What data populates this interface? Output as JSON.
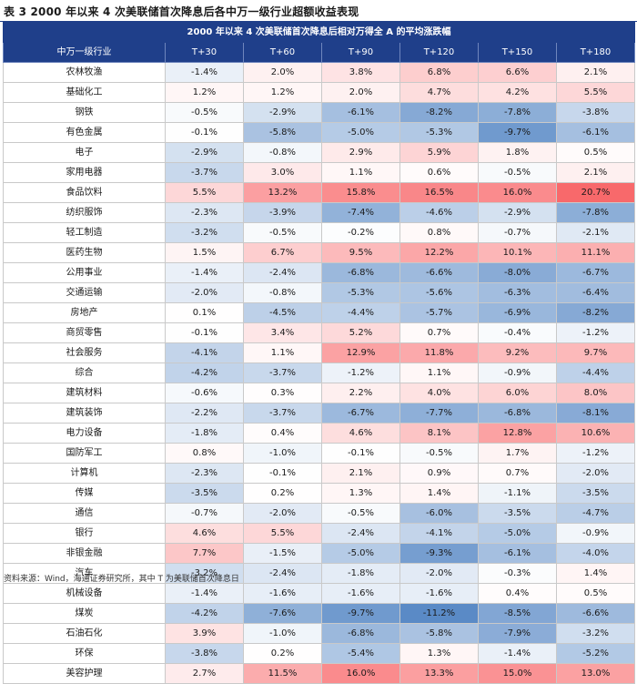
{
  "caption": "表 3  2000 年以来 4 次美联储首次降息后各中万一级行业超额收益表现",
  "table_title": "2000 年以来 4 次美联储首次降息后相对万得全 A 的平均涨跌幅",
  "columns": [
    "中万一级行业",
    "T+30",
    "T+60",
    "T+90",
    "T+120",
    "T+150",
    "T+180"
  ],
  "rows": [
    {
      "name": "农林牧渔",
      "values": [
        "-1.4%",
        "2.0%",
        "3.8%",
        "6.8%",
        "6.6%",
        "2.1%"
      ]
    },
    {
      "name": "基础化工",
      "values": [
        "1.2%",
        "1.2%",
        "2.0%",
        "4.7%",
        "4.2%",
        "5.5%"
      ]
    },
    {
      "name": "钢铁",
      "values": [
        "-0.5%",
        "-2.9%",
        "-6.1%",
        "-8.2%",
        "-7.8%",
        "-3.8%"
      ]
    },
    {
      "name": "有色金属",
      "values": [
        "-0.1%",
        "-5.8%",
        "-5.0%",
        "-5.3%",
        "-9.7%",
        "-6.1%"
      ]
    },
    {
      "name": "电子",
      "values": [
        "-2.9%",
        "-0.8%",
        "2.9%",
        "5.9%",
        "1.8%",
        "0.5%"
      ]
    },
    {
      "name": "家用电器",
      "values": [
        "-3.7%",
        "3.0%",
        "1.1%",
        "0.6%",
        "-0.5%",
        "2.1%"
      ]
    },
    {
      "name": "食品饮料",
      "values": [
        "5.5%",
        "13.2%",
        "15.8%",
        "16.5%",
        "16.0%",
        "20.7%"
      ]
    },
    {
      "name": "纺织服饰",
      "values": [
        "-2.3%",
        "-3.9%",
        "-7.4%",
        "-4.6%",
        "-2.9%",
        "-7.8%"
      ]
    },
    {
      "name": "轻工制造",
      "values": [
        "-3.2%",
        "-0.5%",
        "-0.2%",
        "0.8%",
        "-0.7%",
        "-2.1%"
      ]
    },
    {
      "name": "医药生物",
      "values": [
        "1.5%",
        "6.7%",
        "9.5%",
        "12.2%",
        "10.1%",
        "11.1%"
      ]
    },
    {
      "name": "公用事业",
      "values": [
        "-1.4%",
        "-2.4%",
        "-6.8%",
        "-6.6%",
        "-8.0%",
        "-6.7%"
      ]
    },
    {
      "name": "交通运输",
      "values": [
        "-2.0%",
        "-0.8%",
        "-5.3%",
        "-5.6%",
        "-6.3%",
        "-6.4%"
      ]
    },
    {
      "name": "房地产",
      "values": [
        "0.1%",
        "-4.5%",
        "-4.4%",
        "-5.7%",
        "-6.9%",
        "-8.2%"
      ]
    },
    {
      "name": "商贸零售",
      "values": [
        "-0.1%",
        "3.4%",
        "5.2%",
        "0.7%",
        "-0.4%",
        "-1.2%"
      ]
    },
    {
      "name": "社会服务",
      "values": [
        "-4.1%",
        "1.1%",
        "12.9%",
        "11.8%",
        "9.2%",
        "9.7%"
      ]
    },
    {
      "name": "综合",
      "values": [
        "-4.2%",
        "-3.7%",
        "-1.2%",
        "1.1%",
        "-0.9%",
        "-4.4%"
      ]
    },
    {
      "name": "建筑材料",
      "values": [
        "-0.6%",
        "0.3%",
        "2.2%",
        "4.0%",
        "6.0%",
        "8.0%"
      ]
    },
    {
      "name": "建筑装饰",
      "values": [
        "-2.2%",
        "-3.7%",
        "-6.7%",
        "-7.7%",
        "-6.8%",
        "-8.1%"
      ]
    },
    {
      "name": "电力设备",
      "values": [
        "-1.8%",
        "0.4%",
        "4.6%",
        "8.1%",
        "12.8%",
        "10.6%"
      ]
    },
    {
      "name": "国防军工",
      "values": [
        "0.8%",
        "-1.0%",
        "-0.1%",
        "-0.5%",
        "1.7%",
        "-1.2%"
      ]
    },
    {
      "name": "计算机",
      "values": [
        "-2.3%",
        "-0.1%",
        "2.1%",
        "0.9%",
        "0.7%",
        "-2.0%"
      ]
    },
    {
      "name": "传媒",
      "values": [
        "-3.5%",
        "0.2%",
        "1.3%",
        "1.4%",
        "-1.1%",
        "-3.5%"
      ]
    },
    {
      "name": "通信",
      "values": [
        "-0.7%",
        "-2.0%",
        "-0.5%",
        "-6.0%",
        "-3.5%",
        "-4.7%"
      ]
    },
    {
      "name": "银行",
      "values": [
        "4.6%",
        "5.5%",
        "-2.4%",
        "-4.1%",
        "-5.0%",
        "-0.9%"
      ]
    },
    {
      "name": "非银金融",
      "values": [
        "7.7%",
        "-1.5%",
        "-5.0%",
        "-9.3%",
        "-6.1%",
        "-4.0%"
      ]
    },
    {
      "name": "汽车",
      "values": [
        "-3.2%",
        "-2.4%",
        "-1.8%",
        "-2.0%",
        "-0.3%",
        "1.4%"
      ]
    },
    {
      "name": "机械设备",
      "values": [
        "-1.4%",
        "-1.6%",
        "-1.6%",
        "-1.6%",
        "0.4%",
        "0.5%"
      ]
    },
    {
      "name": "煤炭",
      "values": [
        "-4.2%",
        "-7.6%",
        "-9.7%",
        "-11.2%",
        "-8.5%",
        "-6.6%"
      ]
    },
    {
      "name": "石油石化",
      "values": [
        "3.9%",
        "-1.0%",
        "-6.8%",
        "-5.8%",
        "-7.9%",
        "-3.2%"
      ]
    },
    {
      "name": "环保",
      "values": [
        "-3.8%",
        "0.2%",
        "-5.4%",
        "1.3%",
        "-1.4%",
        "-5.2%"
      ]
    },
    {
      "name": "美容护理",
      "values": [
        "2.7%",
        "11.5%",
        "16.0%",
        "13.3%",
        "15.0%",
        "13.0%"
      ]
    }
  ],
  "source": "资料来源：Wind，海通证券研究所，其中 T 为美联储首次降息日",
  "colors": {
    "header": "#1f3f8a",
    "positive": "#f8696b",
    "negative": "#5a8ac6",
    "neutral": "#ffffff"
  }
}
